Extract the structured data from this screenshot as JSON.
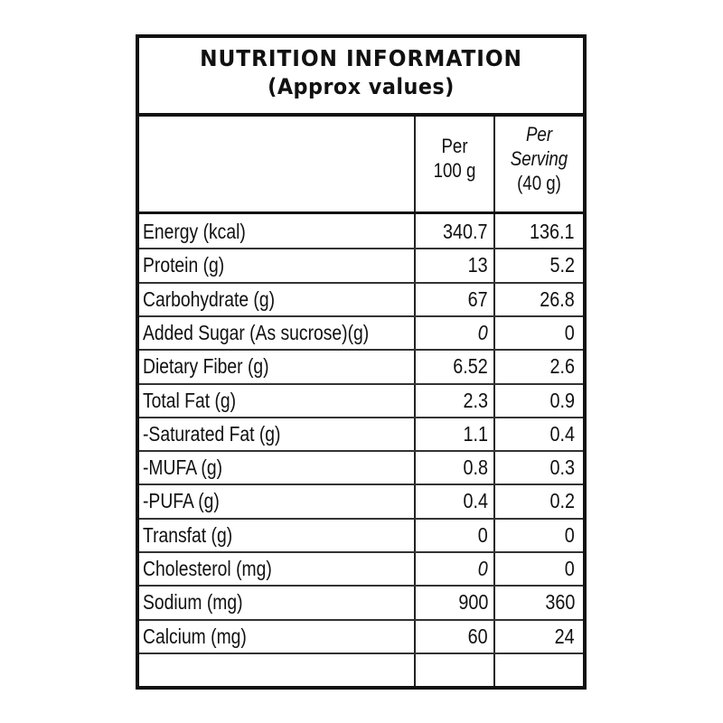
{
  "title": "NUTRITION INFORMATION",
  "subtitle": "(Approx values)",
  "columns": {
    "per_100g": [
      "Per",
      "100 g"
    ],
    "per_serving": [
      "Per",
      "Serving",
      "(40 g)"
    ]
  },
  "rows": [
    {
      "label": "Energy (kcal)",
      "per_100g": "340.7",
      "per_serving": "136.1"
    },
    {
      "label": "Protein (g)",
      "per_100g": "13",
      "per_serving": "5.2"
    },
    {
      "label": "Carbohydrate (g)",
      "per_100g": "67",
      "per_serving": "26.8"
    },
    {
      "label": "Added Sugar (As sucrose)(g)",
      "per_100g": "0",
      "per_serving": "0"
    },
    {
      "label": "Dietary Fiber (g)",
      "per_100g": "6.52",
      "per_serving": "2.6"
    },
    {
      "label": "Total Fat (g)",
      "per_100g": "2.3",
      "per_serving": "0.9"
    },
    {
      "label": "-Saturated Fat (g)",
      "per_100g": "1.1",
      "per_serving": "0.4"
    },
    {
      "label": "-MUFA (g)",
      "per_100g": "0.8",
      "per_serving": "0.3"
    },
    {
      "label": "-PUFA (g)",
      "per_100g": "0.4",
      "per_serving": "0.2"
    },
    {
      "label": "Transfat (g)",
      "per_100g": "0",
      "per_serving": "0"
    },
    {
      "label": "Cholesterol (mg)",
      "per_100g": "0",
      "per_serving": "0"
    },
    {
      "label": "Sodium (mg)",
      "per_100g": "900",
      "per_serving": "360"
    },
    {
      "label": "Calcium (mg)",
      "per_100g": "60",
      "per_serving": "24"
    }
  ]
}
